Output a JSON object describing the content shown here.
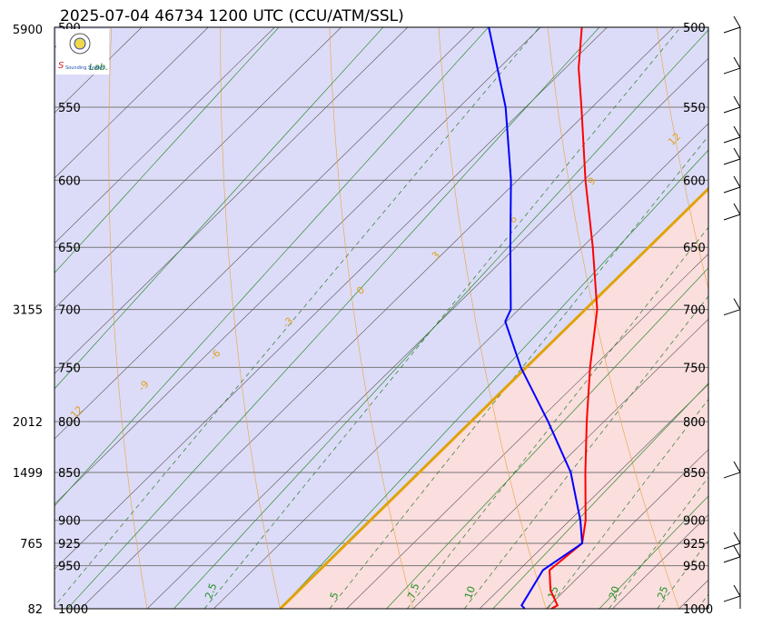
{
  "chart_data": {
    "type": "line",
    "title": "2025-07-04 46734 1200 UTC (CCU/ATM/SSL)",
    "logo": {
      "text_left": "S",
      "text_mid": "Lab.",
      "small": "Sounding System"
    },
    "pressure_levels": [
      500,
      550,
      600,
      650,
      700,
      750,
      800,
      850,
      900,
      925,
      950,
      1000
    ],
    "pressure_labels": [
      "500",
      "550",
      "600",
      "650",
      "700",
      "750",
      "800",
      "850",
      "900",
      "925",
      "950",
      "1000"
    ],
    "height_labels": [
      {
        "p": 500,
        "h": "5900"
      },
      {
        "p": 700,
        "h": "3155"
      },
      {
        "p": 800,
        "h": "2012"
      },
      {
        "p": 850,
        "h": "1499"
      },
      {
        "p": 925,
        "h": "765"
      },
      {
        "p": 1000,
        "h": "82"
      }
    ],
    "ylim": [
      500,
      1000
    ],
    "series": [
      {
        "color": "#ff0000",
        "points": [
          {
            "p": 1000,
            "t": 20.4
          },
          {
            "p": 996,
            "t": 20.6
          },
          {
            "p": 978,
            "t": 18.9
          },
          {
            "p": 955,
            "t": 17.3
          },
          {
            "p": 925,
            "t": 17.7
          },
          {
            "p": 900,
            "t": 16.2
          },
          {
            "p": 850,
            "t": 12.5
          },
          {
            "p": 800,
            "t": 8.7
          },
          {
            "p": 750,
            "t": 4.8
          },
          {
            "p": 700,
            "t": 0.9
          },
          {
            "p": 650,
            "t": -4.2
          },
          {
            "p": 600,
            "t": -9.9
          },
          {
            "p": 550,
            "t": -15.8
          },
          {
            "p": 525,
            "t": -19.0
          },
          {
            "p": 500,
            "t": -21.9
          }
        ]
      },
      {
        "color": "#0000ff",
        "points": [
          {
            "p": 1000,
            "t": 18.4
          },
          {
            "p": 996,
            "t": 17.9
          },
          {
            "p": 955,
            "t": 16.8
          },
          {
            "p": 925,
            "t": 17.7
          },
          {
            "p": 900,
            "t": 15.8
          },
          {
            "p": 850,
            "t": 11.4
          },
          {
            "p": 800,
            "t": 5.8
          },
          {
            "p": 750,
            "t": -0.4
          },
          {
            "p": 710,
            "t": -5.1
          },
          {
            "p": 700,
            "t": -5.6
          },
          {
            "p": 650,
            "t": -10.4
          },
          {
            "p": 600,
            "t": -15.5
          },
          {
            "p": 550,
            "t": -21.5
          },
          {
            "p": 500,
            "t": -28.9
          }
        ]
      }
    ],
    "isotherm_labels": [
      "18",
      "15",
      "12",
      "9",
      "6",
      "3",
      "0",
      "-3",
      "-6",
      "-9",
      "-12",
      "-15",
      "-18",
      "-21",
      "-24",
      "-27",
      "-30"
    ],
    "mixing_ratio_labels": [
      "2.5",
      "5",
      "7.5",
      "10",
      "15",
      "20",
      "25"
    ],
    "wind_barbs": [
      {
        "p": 500
      },
      {
        "p": 525
      },
      {
        "p": 550
      },
      {
        "p": 570
      },
      {
        "p": 585
      },
      {
        "p": 605
      },
      {
        "p": 625
      },
      {
        "p": 700
      },
      {
        "p": 850
      },
      {
        "p": 925
      },
      {
        "p": 940
      },
      {
        "p": 985
      }
    ],
    "colors": {
      "unstable_fill": "#dcdcf8",
      "stable_fill": "#fbdede",
      "dry_adiabat": "#e7a43a",
      "moist_adiabat": "#2e8b2e",
      "isotherm": "#555555",
      "freezing_line": "#e0a30a",
      "temperature": "#ff0000",
      "dewpoint": "#0000ff"
    }
  }
}
